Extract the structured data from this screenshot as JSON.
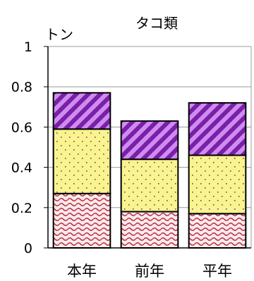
{
  "chart_data": {
    "type": "bar",
    "stacked": true,
    "title": "タコ類",
    "ylabel": "トン",
    "xlabel": "",
    "categories": [
      "本年",
      "前年",
      "平年"
    ],
    "ylim": [
      0,
      1
    ],
    "yticks": [
      "0",
      "0.2",
      "0.4",
      "0.6",
      "0.8",
      "1"
    ],
    "grid": true,
    "legend": "none",
    "series": [
      {
        "values": [
          0.27,
          0.18,
          0.17
        ],
        "color": "#f5d6d6",
        "pattern": "red-wave"
      },
      {
        "values": [
          0.32,
          0.26,
          0.29
        ],
        "color": "#fbf38f",
        "pattern": "dots"
      },
      {
        "values": [
          0.18,
          0.19,
          0.26
        ],
        "color": "#c47be8",
        "pattern": "purple-diagonal"
      }
    ]
  }
}
